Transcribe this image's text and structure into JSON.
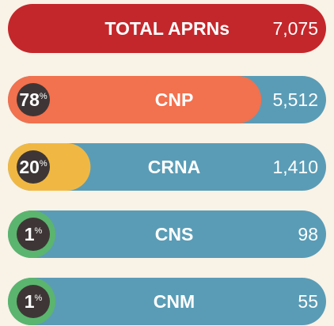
{
  "chart_data": {
    "type": "bar",
    "title": "TOTAL APRNs",
    "total": 7075,
    "total_label": "7,075",
    "title_color": "#c4272b",
    "categories": [
      "CNP",
      "CRNA",
      "CNS",
      "CNM"
    ],
    "values": [
      5512,
      1410,
      98,
      55
    ],
    "value_labels": [
      "5,512",
      "1,410",
      "98",
      "55"
    ],
    "shares": [
      78,
      20,
      1,
      1
    ],
    "share_labels": [
      "78%",
      "20%",
      "1%",
      "1%"
    ],
    "share_colors": [
      "#f2714e",
      "#f0b843",
      "#5bb56e",
      "#5bb56e"
    ],
    "color": "#5a9cb6",
    "xlim": [
      0,
      100
    ]
  }
}
